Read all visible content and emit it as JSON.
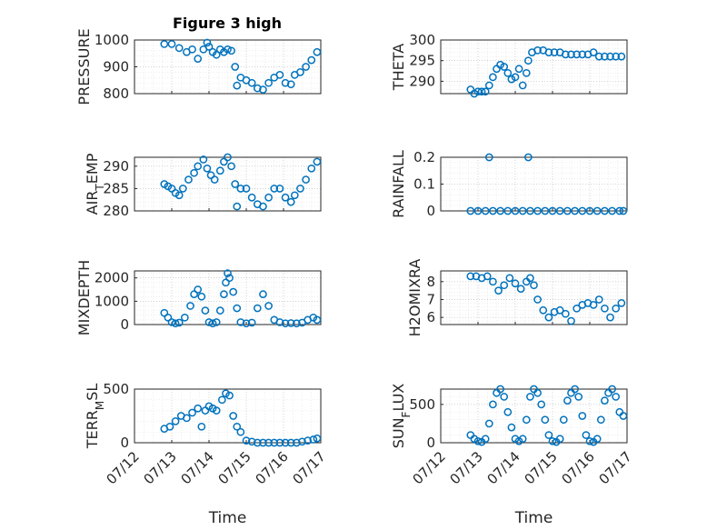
{
  "figure": {
    "title": "Figure 3 high",
    "marker_color": "#0072BD"
  },
  "chart_data": [
    {
      "type": "scatter",
      "panel": "PRESSURE",
      "ylabel": "PRESSURE",
      "xlabel": "",
      "ylim": [
        800,
        1000
      ],
      "yticks": [
        800,
        900,
        1000
      ],
      "xticks": [
        "07/12",
        "07/13",
        "07/14",
        "07/15",
        "07/16",
        "07/17"
      ],
      "x": [
        0.8,
        1.0,
        1.2,
        1.4,
        1.55,
        1.7,
        1.85,
        1.95,
        2.0,
        2.1,
        2.2,
        2.3,
        2.4,
        2.5,
        2.6,
        2.7,
        2.75,
        2.85,
        3.0,
        3.15,
        3.3,
        3.45,
        3.6,
        3.75,
        3.9,
        4.05,
        4.2,
        4.3,
        4.45,
        4.6,
        4.75,
        4.9
      ],
      "y": [
        985,
        985,
        970,
        955,
        965,
        930,
        965,
        990,
        975,
        955,
        945,
        965,
        955,
        965,
        960,
        900,
        830,
        860,
        850,
        840,
        820,
        815,
        840,
        860,
        870,
        840,
        835,
        870,
        880,
        900,
        925,
        955
      ]
    },
    {
      "type": "scatter",
      "panel": "THETA",
      "ylabel": "THETA",
      "xlabel": "",
      "ylim": [
        287,
        300
      ],
      "yticks": [
        290,
        295,
        300
      ],
      "xticks": [
        "07/12",
        "07/13",
        "07/14",
        "07/15",
        "07/16",
        "07/17"
      ],
      "x": [
        0.8,
        0.9,
        1.0,
        1.1,
        1.2,
        1.3,
        1.4,
        1.5,
        1.6,
        1.7,
        1.8,
        1.9,
        2.0,
        2.1,
        2.2,
        2.3,
        2.35,
        2.45,
        2.6,
        2.75,
        2.9,
        3.05,
        3.2,
        3.35,
        3.5,
        3.65,
        3.8,
        3.95,
        4.1,
        4.25,
        4.4,
        4.55,
        4.7,
        4.85
      ],
      "y": [
        288,
        287,
        287.5,
        287.5,
        287.5,
        289,
        291,
        293,
        294,
        293.5,
        292,
        290.5,
        291,
        293,
        289,
        292,
        295,
        297,
        297.5,
        297.5,
        297,
        297,
        297,
        296.5,
        296.5,
        296.5,
        296.5,
        296.5,
        297,
        296,
        296,
        296,
        296,
        296
      ]
    },
    {
      "type": "scatter",
      "panel": "AIR_TEMP",
      "ylabel": "AIR_TEMP",
      "xlabel": "",
      "ylim": [
        280,
        292
      ],
      "yticks": [
        280,
        285,
        290
      ],
      "xticks": [
        "07/12",
        "07/13",
        "07/14",
        "07/15",
        "07/16",
        "07/17"
      ],
      "x": [
        0.8,
        0.9,
        1.0,
        1.1,
        1.2,
        1.3,
        1.45,
        1.6,
        1.7,
        1.85,
        1.95,
        2.05,
        2.15,
        2.3,
        2.4,
        2.5,
        2.6,
        2.7,
        2.75,
        2.85,
        3.0,
        3.15,
        3.3,
        3.45,
        3.6,
        3.75,
        3.9,
        4.05,
        4.2,
        4.3,
        4.45,
        4.6,
        4.75,
        4.9
      ],
      "y": [
        286,
        285.5,
        285,
        284,
        283.5,
        285,
        287,
        288.5,
        290,
        291.5,
        289.5,
        288,
        287,
        289,
        291,
        292,
        290,
        286,
        281,
        285,
        285,
        283,
        281.5,
        281,
        283,
        285,
        285,
        283,
        282,
        283.5,
        285,
        287,
        289.5,
        291
      ]
    },
    {
      "type": "scatter",
      "panel": "RAINFALL",
      "ylabel": "RAINFALL",
      "xlabel": "",
      "ylim": [
        0,
        0.2
      ],
      "yticks": [
        0,
        0.1,
        0.2
      ],
      "xticks": [
        "07/12",
        "07/13",
        "07/14",
        "07/15",
        "07/16",
        "07/17"
      ],
      "x": [
        0.8,
        1.0,
        1.2,
        1.4,
        1.6,
        1.8,
        2.0,
        2.2,
        2.4,
        2.6,
        2.8,
        3.0,
        3.2,
        3.4,
        3.6,
        3.8,
        4.0,
        4.2,
        4.4,
        4.6,
        4.8,
        4.9,
        1.3,
        2.35
      ],
      "y": [
        0,
        0,
        0,
        0,
        0,
        0,
        0,
        0,
        0,
        0,
        0,
        0,
        0,
        0,
        0,
        0,
        0,
        0,
        0,
        0,
        0,
        0,
        0.2,
        0.2
      ]
    },
    {
      "type": "scatter",
      "panel": "MIXDEPTH",
      "ylabel": "MIXDEPTH",
      "xlabel": "",
      "ylim": [
        0,
        2300
      ],
      "yticks": [
        0,
        1000,
        2000
      ],
      "xticks": [
        "07/12",
        "07/13",
        "07/14",
        "07/15",
        "07/16",
        "07/17"
      ],
      "x": [
        0.8,
        0.9,
        1.0,
        1.1,
        1.2,
        1.35,
        1.5,
        1.6,
        1.7,
        1.8,
        1.9,
        2.0,
        2.1,
        2.2,
        2.3,
        2.4,
        2.45,
        2.5,
        2.55,
        2.65,
        2.75,
        2.85,
        3.0,
        3.15,
        3.3,
        3.45,
        3.6,
        3.75,
        3.9,
        4.05,
        4.2,
        4.35,
        4.5,
        4.65,
        4.8,
        4.9
      ],
      "y": [
        500,
        300,
        100,
        50,
        80,
        300,
        800,
        1300,
        1500,
        1200,
        600,
        100,
        50,
        100,
        600,
        1300,
        1800,
        2200,
        2000,
        1400,
        700,
        100,
        50,
        80,
        700,
        1300,
        800,
        200,
        100,
        50,
        60,
        50,
        80,
        200,
        300,
        200
      ]
    },
    {
      "type": "scatter",
      "panel": "H2OMIXRA",
      "ylabel": "H2OMIXRA",
      "xlabel": "",
      "ylim": [
        5.6,
        8.6
      ],
      "yticks": [
        6,
        7,
        8
      ],
      "xticks": [
        "07/12",
        "07/13",
        "07/14",
        "07/15",
        "07/16",
        "07/17"
      ],
      "x": [
        0.8,
        0.95,
        1.1,
        1.25,
        1.4,
        1.55,
        1.7,
        1.85,
        2.0,
        2.15,
        2.3,
        2.4,
        2.5,
        2.6,
        2.75,
        2.9,
        3.05,
        3.2,
        3.35,
        3.5,
        3.65,
        3.8,
        3.95,
        4.1,
        4.25,
        4.4,
        4.55,
        4.7,
        4.85
      ],
      "y": [
        8.3,
        8.3,
        8.2,
        8.3,
        8.0,
        7.5,
        7.8,
        8.2,
        7.9,
        7.6,
        8.0,
        8.2,
        7.8,
        7.0,
        6.4,
        6.0,
        6.3,
        6.4,
        6.2,
        5.8,
        6.5,
        6.7,
        6.8,
        6.7,
        7.0,
        6.5,
        6.0,
        6.5,
        6.8
      ]
    },
    {
      "type": "scatter",
      "panel": "TERR_MSL",
      "ylabel": "TERR_MSL",
      "xlabel": "Time",
      "ylim": [
        0,
        500
      ],
      "yticks": [
        0,
        500
      ],
      "xticks": [
        "07/12",
        "07/13",
        "07/14",
        "07/15",
        "07/16",
        "07/17"
      ],
      "x": [
        0.8,
        0.95,
        1.1,
        1.25,
        1.4,
        1.55,
        1.7,
        1.8,
        1.9,
        2.0,
        2.1,
        2.2,
        2.35,
        2.45,
        2.55,
        2.65,
        2.75,
        2.85,
        3.0,
        3.15,
        3.3,
        3.45,
        3.6,
        3.75,
        3.9,
        4.05,
        4.2,
        4.35,
        4.5,
        4.65,
        4.8,
        4.9
      ],
      "y": [
        130,
        150,
        200,
        250,
        230,
        280,
        320,
        150,
        300,
        340,
        320,
        300,
        400,
        460,
        440,
        250,
        150,
        100,
        20,
        10,
        0,
        0,
        0,
        0,
        0,
        0,
        0,
        0,
        10,
        20,
        30,
        40
      ]
    },
    {
      "type": "scatter",
      "panel": "SUN_FLUX",
      "ylabel": "SUN_FLUX",
      "xlabel": "Time",
      "ylim": [
        0,
        700
      ],
      "yticks": [
        0,
        500
      ],
      "xticks": [
        "07/12",
        "07/13",
        "07/14",
        "07/15",
        "07/16",
        "07/17"
      ],
      "x": [
        0.8,
        0.9,
        1.0,
        1.1,
        1.2,
        1.3,
        1.4,
        1.5,
        1.6,
        1.7,
        1.8,
        1.9,
        2.0,
        2.1,
        2.2,
        2.3,
        2.4,
        2.5,
        2.6,
        2.7,
        2.8,
        2.9,
        3.0,
        3.1,
        3.2,
        3.3,
        3.4,
        3.5,
        3.6,
        3.7,
        3.8,
        3.9,
        4.0,
        4.1,
        4.2,
        4.3,
        4.4,
        4.5,
        4.6,
        4.7,
        4.8,
        4.9
      ],
      "y": [
        100,
        50,
        20,
        10,
        50,
        250,
        500,
        650,
        700,
        600,
        400,
        200,
        50,
        20,
        50,
        300,
        600,
        700,
        650,
        500,
        300,
        100,
        20,
        10,
        50,
        300,
        550,
        650,
        700,
        600,
        350,
        100,
        20,
        10,
        50,
        300,
        550,
        650,
        700,
        600,
        400,
        350
      ]
    }
  ]
}
